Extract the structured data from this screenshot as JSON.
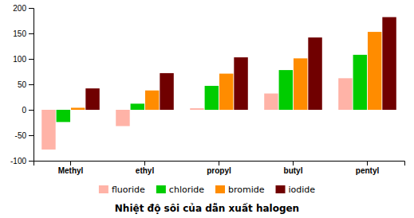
{
  "chart_data": {
    "type": "bar",
    "title": "Nhiệt độ sôi của dẫn xuất halogen",
    "categories": [
      "Methyl",
      "ethyl",
      "propyl",
      "butyl",
      "pentyl"
    ],
    "series": [
      {
        "name": "fluoride",
        "color": "#FFB3A7",
        "values": [
          -78,
          -32,
          3,
          32,
          62
        ]
      },
      {
        "name": "chloride",
        "color": "#00CC00",
        "values": [
          -24,
          12,
          47,
          78,
          108
        ]
      },
      {
        "name": "bromide",
        "color": "#FF8C00",
        "values": [
          4,
          38,
          71,
          101,
          153
        ]
      },
      {
        "name": "iodide",
        "color": "#700000",
        "values": [
          42,
          72,
          103,
          142,
          182
        ]
      }
    ],
    "ylim": [
      -100,
      200
    ],
    "yticks": [
      -100,
      -50,
      0,
      50,
      100,
      150,
      200
    ],
    "grid": false,
    "legend": "bottom"
  }
}
